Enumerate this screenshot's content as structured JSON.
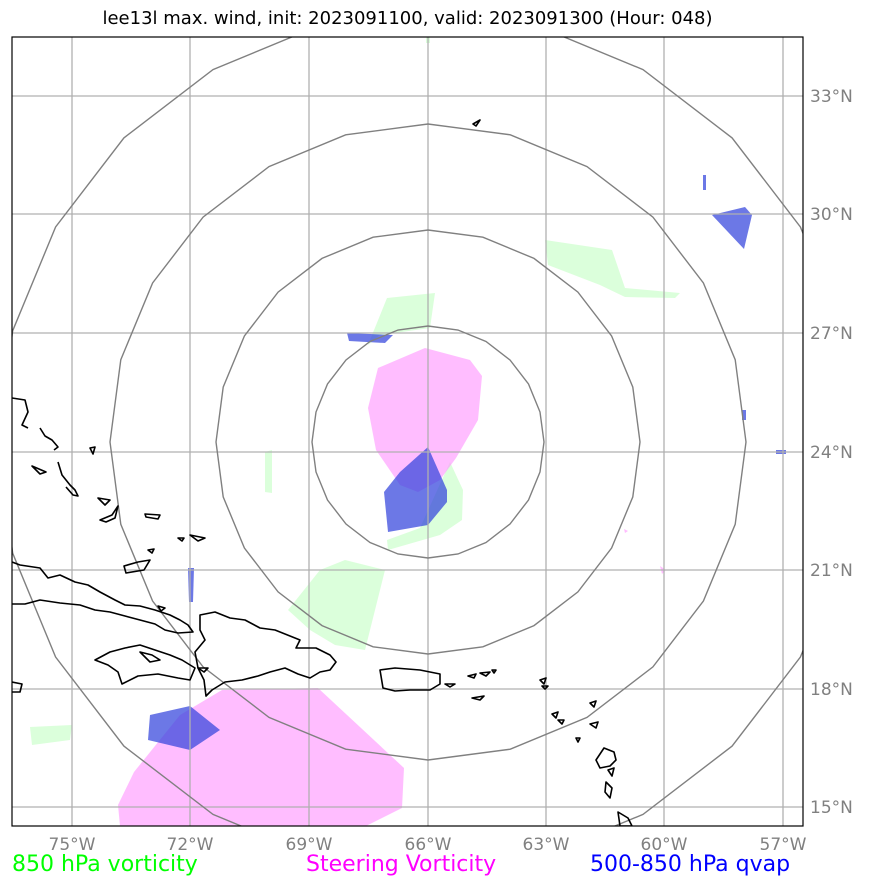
{
  "title": "lee13l max. wind, init: 2023091100, valid: 2023091300 (Hour: 048)",
  "lon_ticks": [
    "75°W",
    "72°W",
    "69°W",
    "66°W",
    "63°W",
    "60°W",
    "57°W"
  ],
  "lat_ticks": [
    "33°N",
    "30°N",
    "27°N",
    "24°N",
    "21°N",
    "18°N",
    "15°N"
  ],
  "legend": {
    "vort850": "850 hPa vorticity",
    "steering": "Steering Vorticity",
    "qvap": "500-850 hPa qvap"
  },
  "colors": {
    "vort850": "#00ff00",
    "vort850_fill": "#ccffcc",
    "steering": "#ff00ff",
    "steering_fill": "#ff99ff",
    "qvap": "#0000ff",
    "qvap_fill": "#3344dd",
    "grid": "#b0b0b0",
    "rings": "#808080",
    "coast": "#000000"
  },
  "extent": {
    "lon": [
      -76.5,
      -56.5
    ],
    "lat": [
      14.5,
      34.5
    ]
  },
  "storm_center": {
    "lon": -66.0,
    "lat": 24.0
  }
}
